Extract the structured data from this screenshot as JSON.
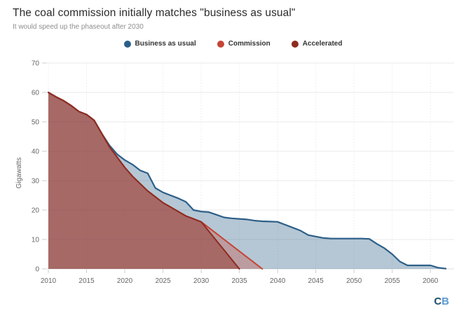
{
  "page": {
    "background": "#ffffff",
    "logo": {
      "c": "C",
      "b": "B",
      "c_color": "#1d4f72",
      "b_color": "#5b9bd1"
    }
  },
  "chart_data": {
    "type": "area",
    "title": "The coal commission initially matches \"business as usual\"",
    "subtitle": "It would speed up the phaseout after 2030",
    "ylabel": "Gigawatts",
    "xlabel": "",
    "ylim": [
      0,
      70
    ],
    "xlim": [
      2010,
      2062
    ],
    "x_ticks": [
      2010,
      2015,
      2020,
      2025,
      2030,
      2035,
      2040,
      2045,
      2050,
      2055,
      2060
    ],
    "y_ticks": [
      0,
      10,
      20,
      30,
      40,
      50,
      60,
      70
    ],
    "grid": true,
    "legend_position": "top",
    "series": [
      {
        "name": "Business as usual",
        "color": "#2c5f88",
        "fill": "rgba(44,95,136,0.35)",
        "line_width": 2.2,
        "x": [
          2010,
          2011,
          2012,
          2013,
          2014,
          2015,
          2016,
          2017,
          2018,
          2019,
          2020,
          2021,
          2022,
          2023,
          2024,
          2025,
          2026,
          2027,
          2028,
          2029,
          2030,
          2031,
          2032,
          2033,
          2034,
          2035,
          2036,
          2037,
          2038,
          2039,
          2040,
          2041,
          2042,
          2043,
          2044,
          2045,
          2046,
          2047,
          2048,
          2049,
          2050,
          2051,
          2052,
          2053,
          2054,
          2055,
          2056,
          2057,
          2058,
          2059,
          2060,
          2061,
          2062
        ],
        "values": [
          60,
          58.5,
          57.2,
          55.5,
          53.5,
          52.5,
          50.5,
          46,
          42,
          39,
          37,
          35.5,
          33.5,
          32.5,
          27.5,
          26,
          25,
          24,
          22.8,
          20,
          19.5,
          19.3,
          18.4,
          17.5,
          17.2,
          17,
          16.8,
          16.4,
          16.2,
          16.1,
          16,
          15,
          14,
          13,
          11.5,
          11,
          10.5,
          10.3,
          10.3,
          10.3,
          10.3,
          10.3,
          10.2,
          8.5,
          7,
          5,
          2.5,
          1.2,
          1.2,
          1.2,
          1.2,
          0.4,
          0.1
        ]
      },
      {
        "name": "Commission",
        "color": "#c64534",
        "fill": "rgba(198,69,52,0.32)",
        "line_width": 2,
        "x": [
          2010,
          2011,
          2012,
          2013,
          2014,
          2015,
          2016,
          2017,
          2018,
          2019,
          2020,
          2021,
          2022,
          2023,
          2024,
          2025,
          2026,
          2027,
          2028,
          2029,
          2030,
          2031,
          2032,
          2033,
          2034,
          2035,
          2036,
          2037,
          2038
        ],
        "values": [
          60,
          58.5,
          57.2,
          55.5,
          53.5,
          52.5,
          50.5,
          46,
          41.5,
          38,
          34.5,
          31.5,
          29,
          26.5,
          24.5,
          22.5,
          21,
          19.5,
          18,
          17,
          16,
          14,
          12,
          10,
          8,
          6,
          4,
          2,
          0
        ]
      },
      {
        "name": "Accelerated",
        "color": "#8e2b20",
        "fill": "rgba(142,43,32,0.45)",
        "line_width": 2,
        "x": [
          2010,
          2011,
          2012,
          2013,
          2014,
          2015,
          2016,
          2017,
          2018,
          2019,
          2020,
          2021,
          2022,
          2023,
          2024,
          2025,
          2026,
          2027,
          2028,
          2029,
          2030,
          2031,
          2032,
          2033,
          2034,
          2035
        ],
        "values": [
          60,
          58.5,
          57.2,
          55.5,
          53.5,
          52.5,
          50.5,
          46,
          41.5,
          38,
          34.5,
          31.5,
          29,
          26.5,
          24.5,
          22.5,
          21,
          19.5,
          18,
          17,
          16,
          12.8,
          9.6,
          6.4,
          3.2,
          0
        ]
      }
    ]
  }
}
